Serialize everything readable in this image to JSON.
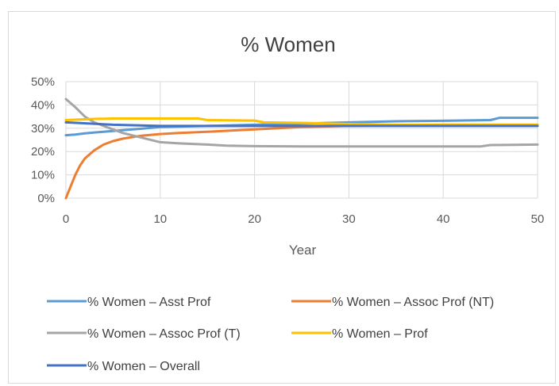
{
  "chart_data": {
    "type": "line",
    "title": "% Women",
    "xlabel": "Year",
    "ylabel": "",
    "xlim": [
      0,
      50
    ],
    "ylim": [
      0,
      50
    ],
    "x_ticks": [
      "0",
      "10",
      "20",
      "30",
      "40",
      "50"
    ],
    "y_ticks": [
      "0%",
      "10%",
      "20%",
      "30%",
      "40%",
      "50%"
    ],
    "grid": true,
    "legend_position": "bottom",
    "series": [
      {
        "name": "% Women – Asst Prof",
        "color": "#5b9bd5",
        "x": [
          0,
          1,
          2,
          4,
          6,
          8,
          10,
          15,
          20,
          25,
          30,
          35,
          40,
          45,
          46,
          50
        ],
        "values": [
          27,
          27.3,
          27.8,
          28.5,
          29.2,
          29.8,
          30.5,
          31,
          31.5,
          32,
          32.5,
          33,
          33.2,
          33.5,
          34.5,
          34.5
        ]
      },
      {
        "name": "% Women – Assoc Prof (NT)",
        "color": "#ed7d31",
        "x": [
          0,
          0.5,
          1,
          1.5,
          2,
          3,
          4,
          5,
          6,
          8,
          10,
          12,
          15,
          20,
          25,
          30,
          40,
          50
        ],
        "values": [
          0,
          5,
          10,
          14,
          17,
          20.5,
          23,
          24.5,
          25.5,
          26.8,
          27.5,
          28,
          28.5,
          29.5,
          30.5,
          31,
          31.5,
          31.5
        ]
      },
      {
        "name": "% Women – Assoc Prof (T)",
        "color": "#a5a5a5",
        "x": [
          0,
          1,
          2,
          3,
          4,
          5,
          6,
          8,
          10,
          12,
          15,
          17,
          20,
          25,
          30,
          35,
          40,
          44,
          45,
          50
        ],
        "values": [
          42.5,
          39,
          35,
          32.5,
          31,
          29.5,
          28,
          26,
          24,
          23.5,
          23,
          22.5,
          22.3,
          22.2,
          22.2,
          22.2,
          22.2,
          22.2,
          22.8,
          23
        ]
      },
      {
        "name": "% Women – Prof",
        "color": "#ffc000",
        "x": [
          0,
          3,
          5,
          10,
          14,
          15,
          20,
          21,
          25,
          30,
          35,
          40,
          42,
          45,
          50
        ],
        "values": [
          33.5,
          34,
          34.2,
          34.2,
          34.2,
          33.5,
          33.3,
          32.5,
          32.3,
          31.8,
          31.5,
          31.5,
          31.5,
          31.5,
          31.5
        ]
      },
      {
        "name": "% Women – Overall",
        "color": "#4472c4",
        "x": [
          0,
          5,
          10,
          20,
          30,
          40,
          50
        ],
        "values": [
          32.5,
          31.5,
          31,
          31,
          31,
          31,
          31
        ]
      }
    ]
  }
}
